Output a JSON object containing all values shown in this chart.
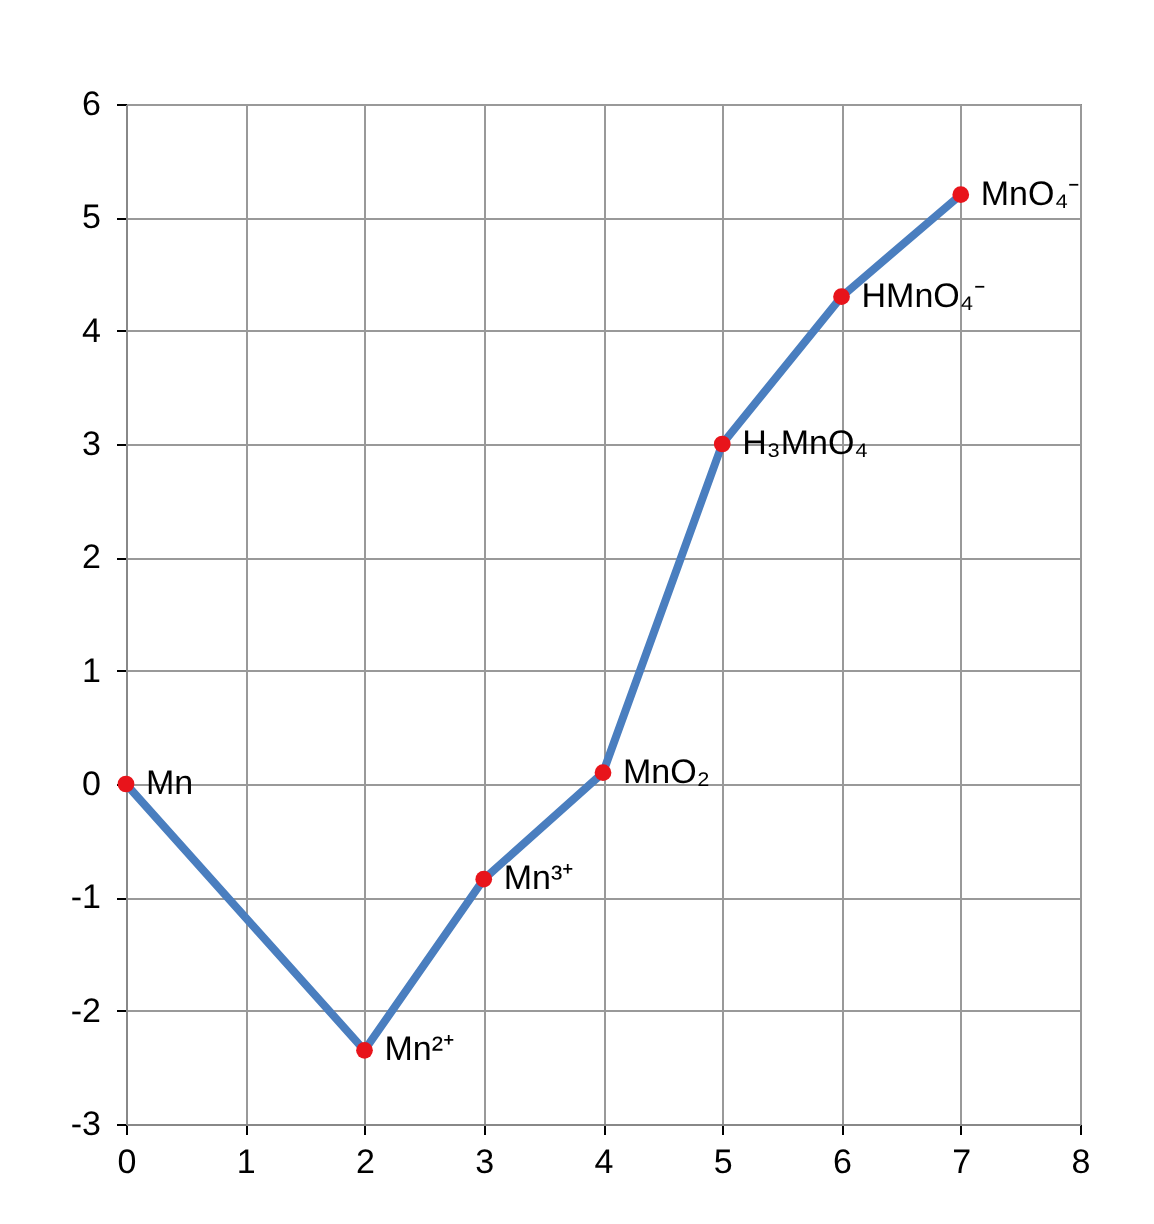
{
  "chart_data": {
    "type": "line",
    "x": [
      0,
      2,
      3,
      4,
      5,
      6,
      7
    ],
    "series": [
      {
        "color": "#4a7ebf",
        "colors": [
          "#e8141b",
          "#e8141b",
          "#e8141b",
          "#e8141b",
          "#e8141b",
          "#e8141b",
          "#e8141b"
        ],
        "values": [
          0,
          -2.35,
          -0.84,
          0.1,
          3.0,
          4.3,
          5.2
        ]
      }
    ],
    "xlim": [
      0,
      8
    ],
    "ylim": [
      -3,
      6
    ],
    "xticks": [
      0,
      1,
      2,
      3,
      4,
      5,
      6,
      7,
      8
    ],
    "yticks": [
      -3,
      -2,
      -1,
      0,
      1,
      2,
      3,
      4,
      5,
      6
    ],
    "grid": true,
    "marker": "circle",
    "line_style": "solid",
    "annotations": [
      {
        "text": "Mn",
        "x": 0,
        "y": 0
      },
      {
        "text": "Mn²⁺",
        "x": 2,
        "y": -2.35
      },
      {
        "text": "Mn³⁺",
        "x": 3,
        "y": -0.84
      },
      {
        "text": "MnO₂",
        "x": 4,
        "y": 0.1
      },
      {
        "text": "H₃MnO₄",
        "x": 5,
        "y": 3.0
      },
      {
        "text": "HMnO₄⁻",
        "x": 6,
        "y": 4.3
      },
      {
        "text": "MnO₄⁻",
        "x": 7,
        "y": 5.2
      }
    ]
  }
}
